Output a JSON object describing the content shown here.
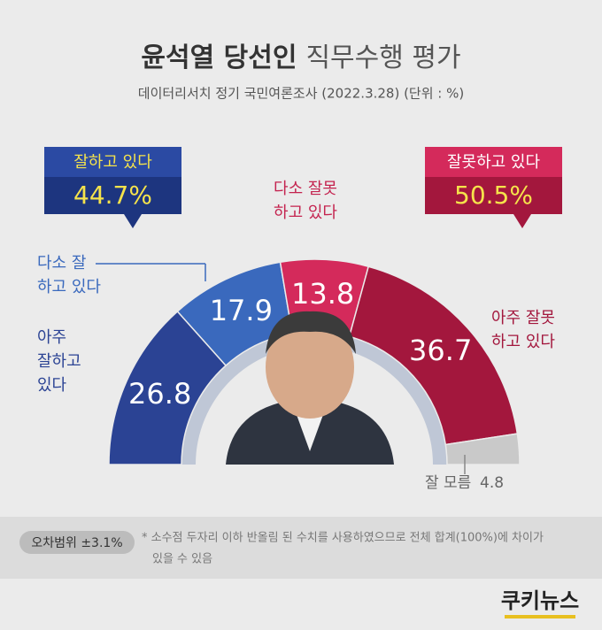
{
  "chart_data": {
    "type": "half-donut",
    "title": [
      "윤석열 당선인",
      "직무수행 평가"
    ],
    "subtitle": "데이터리서치 정기 국민여론조사 (2022.3.28)  (단위 : %)",
    "categories": [
      [
        "아주",
        "잘하고",
        "있다"
      ],
      [
        "다소 잘",
        "하고 있다"
      ],
      [
        "다소 잘못",
        "하고 있다"
      ],
      [
        "아주 잘못",
        "하고 있다"
      ],
      [
        "잘 모름"
      ]
    ],
    "values": [
      26.8,
      17.9,
      13.8,
      36.7,
      4.8
    ],
    "colors": [
      "#2b4394",
      "#3a69bd",
      "#d42a5b",
      "#a3173d",
      "#c9c9c9"
    ],
    "label_colors": [
      "#2b4394",
      "#3a69bd",
      "#c4234f",
      "#a3173d",
      "#666666"
    ],
    "groups": [
      {
        "label": "잘하고 있다",
        "value": 44.7,
        "value_label": "44.7%",
        "color": "#2b4aa3",
        "dark": "#1d357f"
      },
      {
        "label": "잘못하고 있다",
        "value": 50.5,
        "value_label": "50.5%",
        "color": "#d42a5b",
        "dark": "#a3173d"
      }
    ]
  },
  "footer": {
    "margin": "오차범위 ±3.1%",
    "note": [
      "* 소수점 두자리 이하 반올림 된 수치를 사용하였으므로 전체 합계(100%)에 차이가",
      "있을 수 있음"
    ],
    "logo": "쿠키뉴스"
  }
}
